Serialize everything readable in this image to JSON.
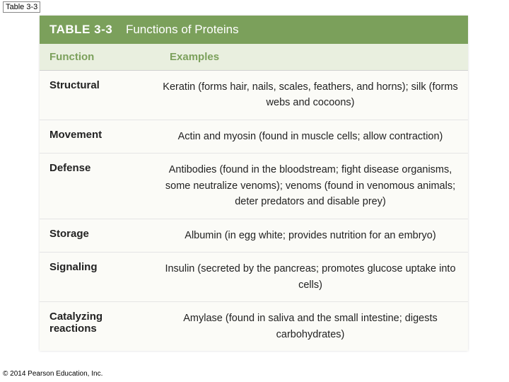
{
  "slide_label": "Table 3-3",
  "title": {
    "number": "TABLE 3-3",
    "text": "Functions of Proteins"
  },
  "headers": {
    "function": "Function",
    "examples": "Examples"
  },
  "rows": [
    {
      "function": "Structural",
      "examples": "Keratin (forms hair, nails, scales, feathers, and horns); silk (forms webs and cocoons)"
    },
    {
      "function": "Movement",
      "examples": "Actin and myosin (found in muscle cells; allow contraction)"
    },
    {
      "function": "Defense",
      "examples": "Antibodies (found in the bloodstream; fight disease organisms, some neutralize venoms); venoms (found in venomous animals; deter predators and disable prey)"
    },
    {
      "function": "Storage",
      "examples": "Albumin (in egg white; provides nutrition for an embryo)"
    },
    {
      "function": "Signaling",
      "examples": "Insulin (secreted by the pancreas; promotes glucose uptake into cells)"
    },
    {
      "function": "Catalyzing reactions",
      "examples": "Amylase (found in saliva and the small intestine; digests carbohydrates)"
    }
  ],
  "copyright": "© 2014 Pearson Education, Inc.",
  "colors": {
    "header_bg": "#7ba05b",
    "header_text": "#ffffff",
    "subhead_bg": "#e9efdf",
    "subhead_text": "#7ba05b",
    "row_bg": "#fbfbf7",
    "body_text": "#222222",
    "border": "#e5e5e5"
  }
}
